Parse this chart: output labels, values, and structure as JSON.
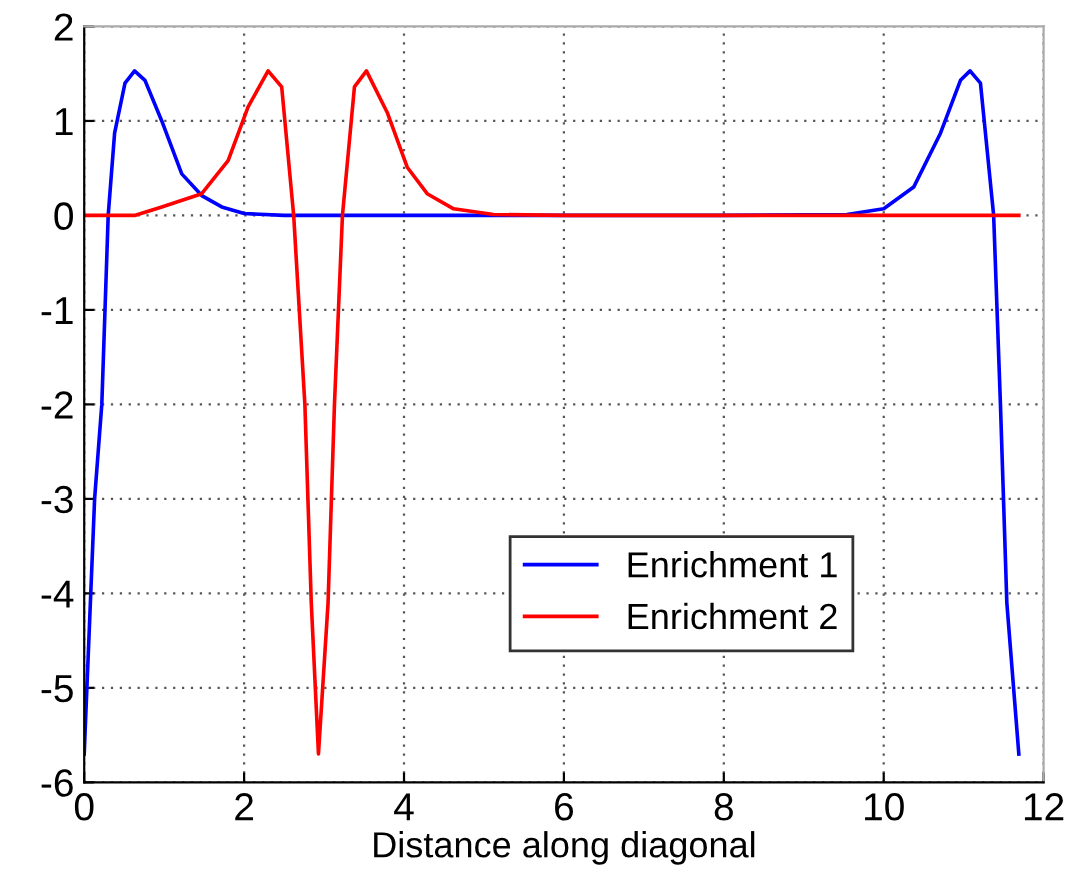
{
  "chart_data": {
    "type": "line",
    "xlabel": "Distance along diagonal",
    "xlim": [
      0,
      12
    ],
    "ylim": [
      -6,
      2
    ],
    "xticks": [
      0,
      2,
      4,
      6,
      8,
      10,
      12
    ],
    "yticks": [
      -6,
      -5,
      -4,
      -3,
      -2,
      -1,
      0,
      1,
      2
    ],
    "grid": true,
    "legend": "bottom right",
    "line_style": "solid",
    "marker": "none",
    "series": [
      {
        "name": "Enrichment 1",
        "color": "#0000ff",
        "x": [
          0.0,
          0.13,
          0.22,
          0.3,
          0.38,
          0.51,
          0.63,
          0.76,
          0.97,
          1.22,
          1.47,
          1.72,
          2.0,
          2.5,
          4,
          6,
          8,
          9.54,
          10.0,
          10.375,
          10.71,
          10.96,
          11.08,
          11.21,
          11.375,
          11.46,
          11.54,
          11.69
        ],
        "values": [
          -5.7,
          -3.0,
          -2.0,
          0,
          0.87,
          1.4,
          1.53,
          1.43,
          1.0,
          0.44,
          0.21,
          0.09,
          0.02,
          0,
          0,
          0,
          0,
          0.01,
          0.07,
          0.3,
          0.87,
          1.43,
          1.53,
          1.4,
          0,
          -2.0,
          -4.1,
          -5.7
        ]
      },
      {
        "name": "Enrichment 2",
        "color": "#ff0000",
        "x": [
          0.0,
          0.63,
          0.97,
          1.47,
          1.8,
          2.05,
          2.3,
          2.47,
          2.62,
          2.76,
          2.84,
          2.93,
          3.05,
          3.13,
          3.23,
          3.38,
          3.53,
          3.79,
          4.04,
          4.29,
          4.62,
          5.12,
          6,
          8,
          10,
          11.69
        ],
        "values": [
          0,
          0,
          0.09,
          0.23,
          0.58,
          1.15,
          1.53,
          1.36,
          0,
          -2.0,
          -4.1,
          -5.7,
          -4.1,
          -2.0,
          0,
          1.36,
          1.53,
          1.09,
          0.51,
          0.23,
          0.07,
          0.01,
          0,
          0,
          0,
          0
        ]
      }
    ]
  }
}
